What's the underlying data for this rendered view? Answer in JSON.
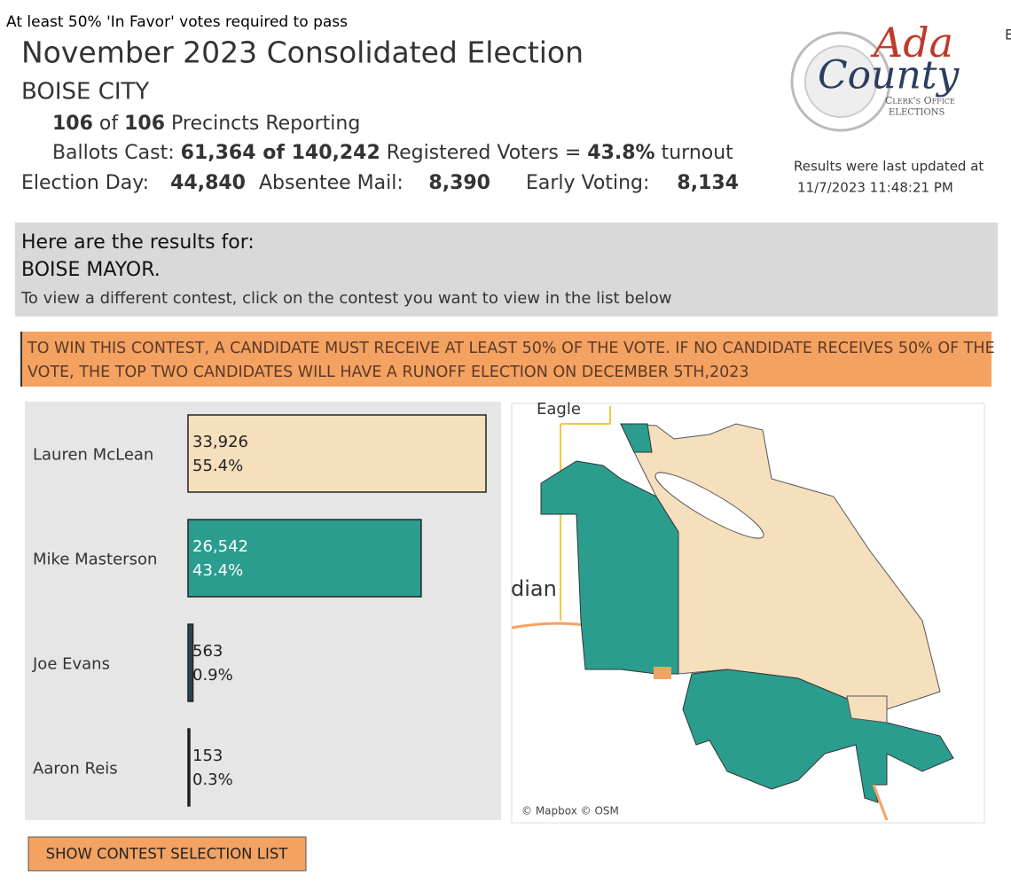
{
  "notice": "At least 50% 'In Favor' votes required to pass",
  "edge_text": "E",
  "header": {
    "title": "November 2023 Consolidated Election",
    "jurisdiction": "BOISE CITY",
    "precincts": [
      "106",
      " of ",
      "106",
      " Precincts Reporting"
    ],
    "ballots": [
      "Ballots Cast: ",
      "61,364",
      " of ",
      "140,242",
      " Registered Voters = ",
      "43.8%",
      " turnout"
    ],
    "election_day": {
      "label": "Election Day:",
      "value": "44,840"
    },
    "absentee": {
      "label": "Absentee Mail:",
      "value": "8,390"
    },
    "early": {
      "label": "Early Voting:",
      "value": "8,134"
    },
    "updated": [
      "Results were last updated at",
      "11/7/2023 11:48:21 PM"
    ]
  },
  "logo": {
    "name": "Ada",
    "county": "County",
    "office": "Clerk's Office",
    "dept": "Elections"
  },
  "contest": {
    "intro": "Here are the results for:",
    "name": "BOISE MAYOR.",
    "hint": "To view a different contest, click on the contest you want to view in the list below"
  },
  "rule": [
    "TO WIN THIS CONTEST, A CANDIDATE MUST RECEIVE AT LEAST 50% OF THE VOTE. IF NO CANDIDATE RECEIVES 50% OF THE",
    "VOTE, THE TOP TWO CANDIDATES WILL HAVE A RUNOFF ELECTION ON DECEMBER 5TH,2023"
  ],
  "chart_data": {
    "type": "bar",
    "orientation": "horizontal",
    "categories": [
      "Lauren McLean",
      "Mike Masterson",
      "Joe Evans",
      "Aaron Reis"
    ],
    "values": [
      33926,
      26542,
      563,
      153
    ],
    "value_labels": [
      "33,926",
      "26,542",
      "563",
      "153"
    ],
    "shares": [
      55.4,
      43.4,
      0.9,
      0.3
    ],
    "share_labels": [
      "55.4%",
      "43.4%",
      "0.9%",
      "0.3%"
    ],
    "colors": [
      "#f5dfbd",
      "#2a9d8f",
      "#264653",
      "#111111"
    ]
  },
  "map": {
    "labels": [
      "Eagle",
      "dian"
    ],
    "credit": "© Mapbox © OSM"
  },
  "button": "SHOW CONTEST SELECTION LIST"
}
